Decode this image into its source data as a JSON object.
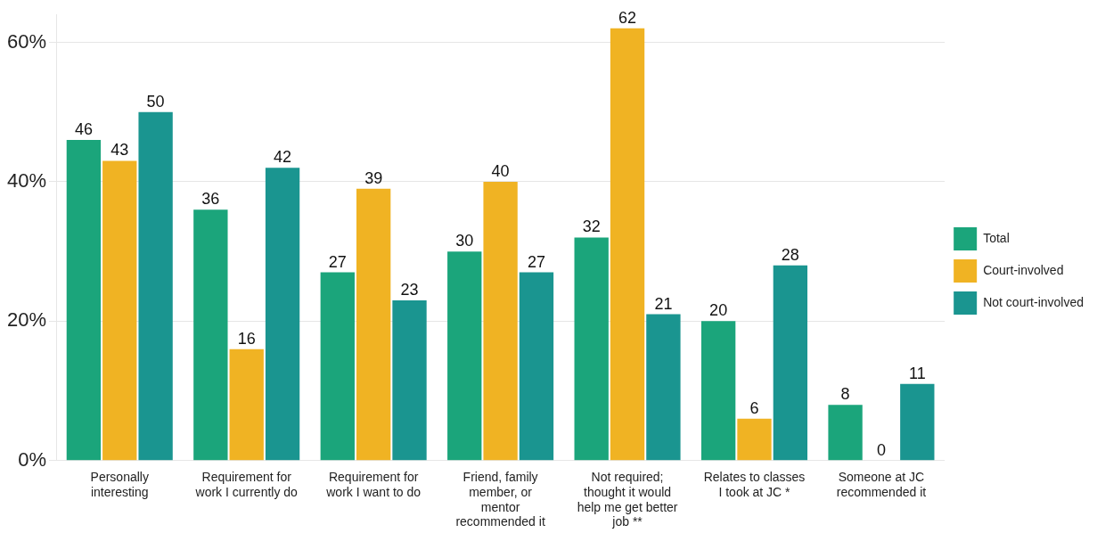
{
  "chart_data": {
    "type": "bar",
    "categories": [
      "Personally interesting",
      "Requirement for work I currently do",
      "Requirement for work I want to do",
      "Friend, family member, or mentor recommended it",
      "Not required; thought it would help me get better job **",
      "Relates to classes I took at JC *",
      "Someone at JC recommended it"
    ],
    "series": [
      {
        "name": "Total",
        "color": "#1ba57b",
        "values": [
          46,
          36,
          27,
          30,
          32,
          20,
          8
        ]
      },
      {
        "name": "Court-involved",
        "color": "#f0b323",
        "values": [
          43,
          16,
          39,
          40,
          62,
          6,
          0
        ]
      },
      {
        "name": "Not court-involved",
        "color": "#1a9590",
        "values": [
          50,
          42,
          23,
          27,
          21,
          28,
          11
        ]
      }
    ],
    "ylim": [
      0,
      64
    ],
    "yticks": [
      {
        "value": 0,
        "label": "0%"
      },
      {
        "value": 20,
        "label": "20%"
      },
      {
        "value": 40,
        "label": "40%"
      },
      {
        "value": 60,
        "label": "60%"
      }
    ],
    "grid": "y",
    "legend": "right",
    "data_labels": true
  }
}
